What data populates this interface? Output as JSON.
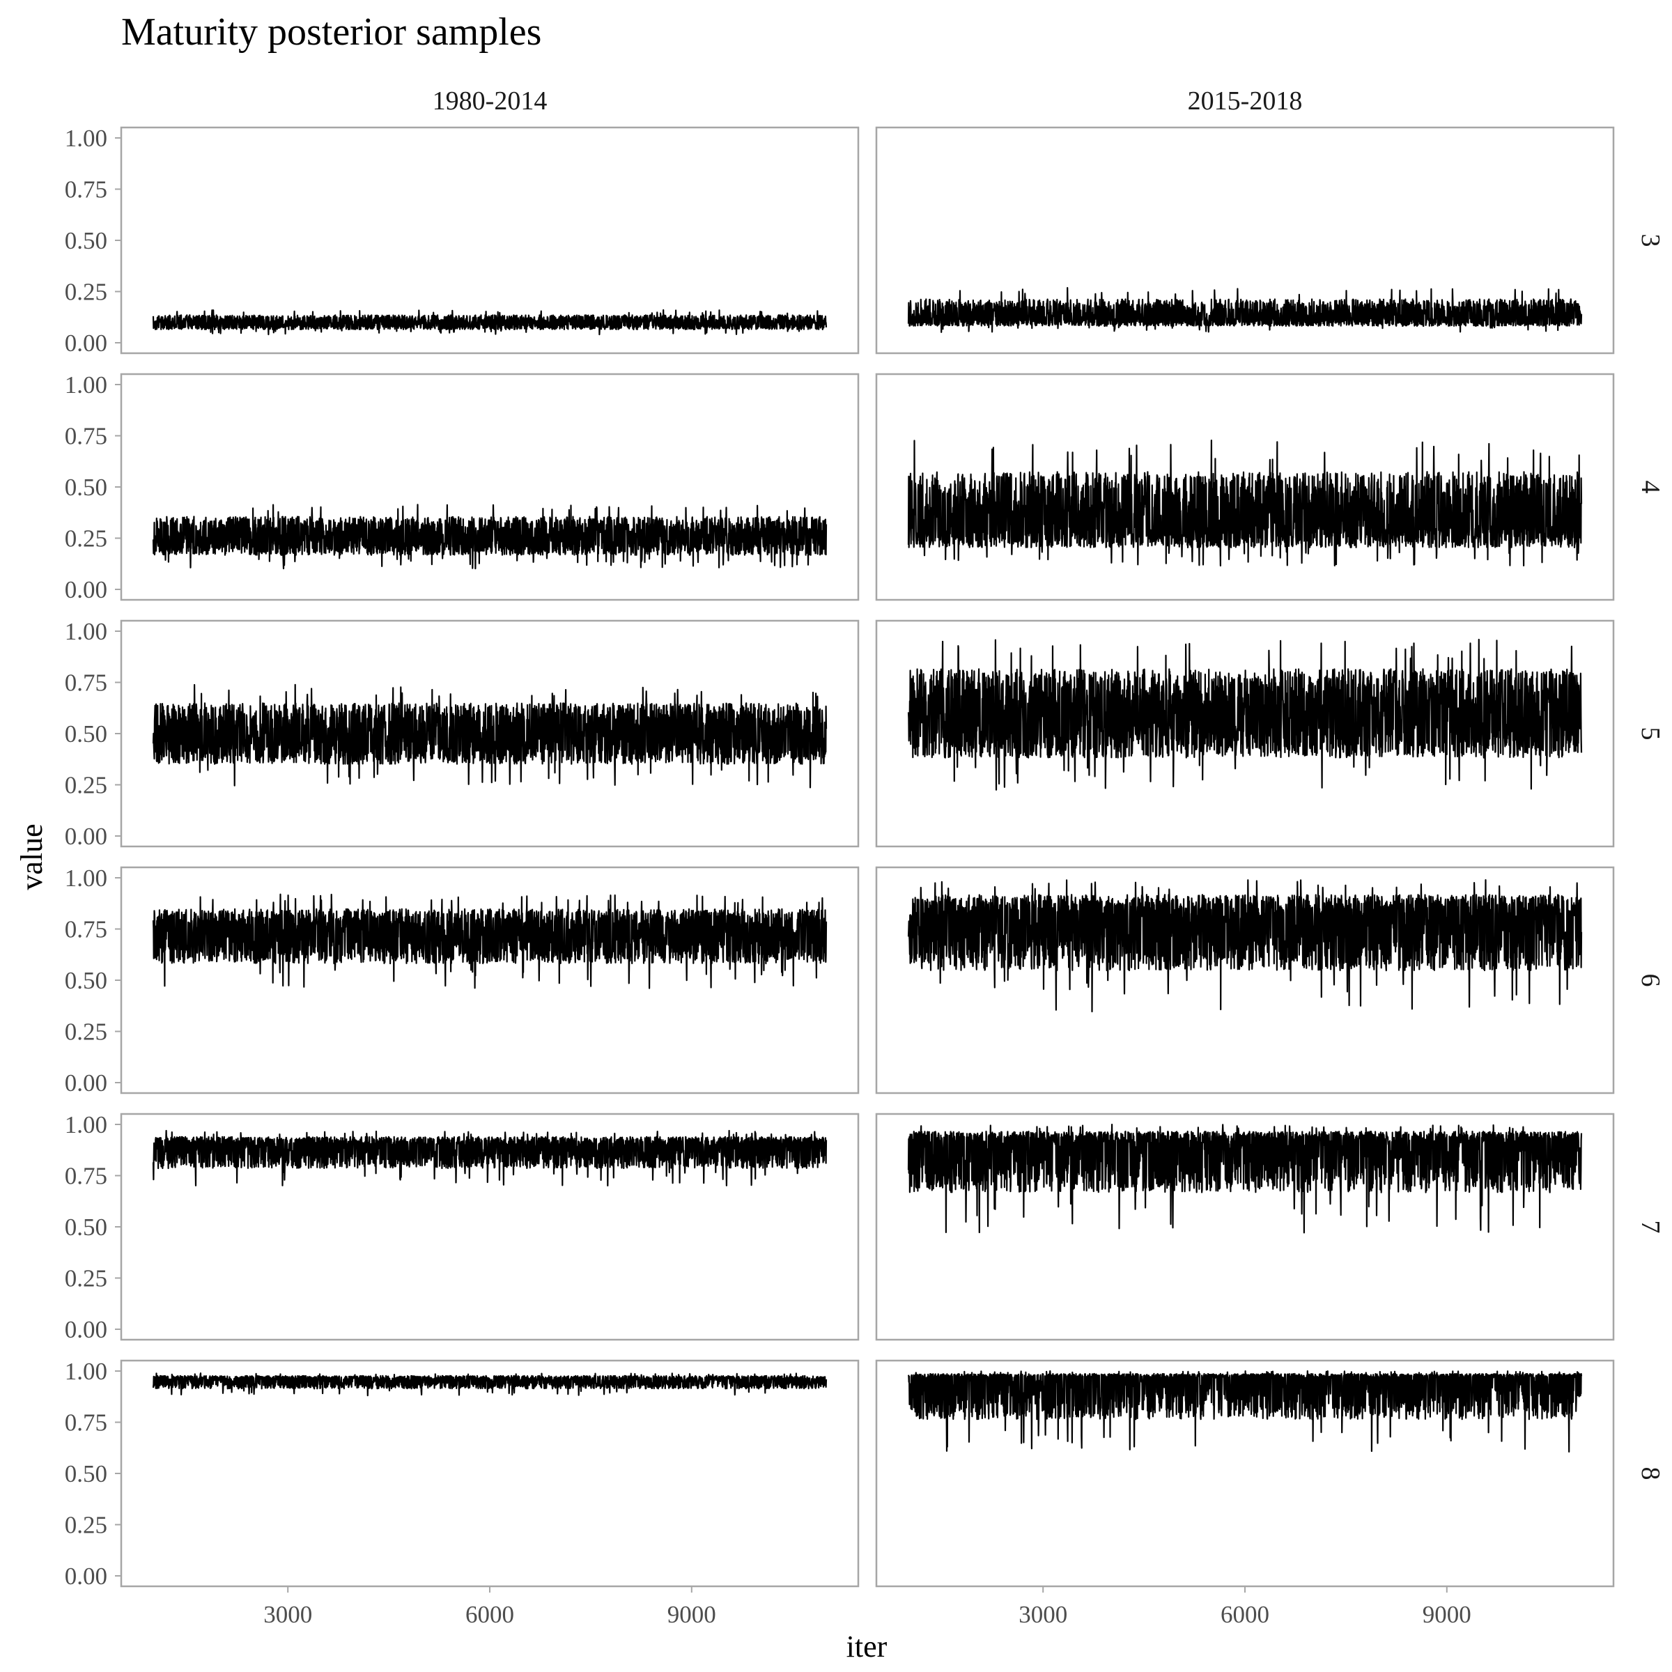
{
  "chart_data": {
    "type": "line",
    "title": "Maturity posterior samples",
    "xlabel": "iter",
    "ylabel": "value",
    "column_facets": [
      "1980-2014",
      "2015-2018"
    ],
    "row_facets": [
      "3",
      "4",
      "5",
      "6",
      "7",
      "8"
    ],
    "xlim": [
      1000,
      11000
    ],
    "ylim": [
      0,
      1
    ],
    "x_ticks": [
      3000,
      6000,
      9000
    ],
    "x_tick_labels": [
      "3000",
      "6000",
      "9000"
    ],
    "y_ticks": [
      0,
      0.25,
      0.5,
      0.75,
      1
    ],
    "y_tick_labels": [
      "0.00",
      "0.25",
      "0.50",
      "0.75",
      "1.00"
    ],
    "grid": false,
    "iter_range": [
      1000,
      11000
    ],
    "panels": [
      {
        "row": "3",
        "column": "1980-2014",
        "mean": 0.095,
        "min": 0.04,
        "max": 0.16
      },
      {
        "row": "3",
        "column": "2015-2018",
        "mean": 0.12,
        "min": 0.05,
        "max": 0.27
      },
      {
        "row": "4",
        "column": "1980-2014",
        "mean": 0.25,
        "min": 0.1,
        "max": 0.42
      },
      {
        "row": "4",
        "column": "2015-2018",
        "mean": 0.32,
        "min": 0.11,
        "max": 0.73
      },
      {
        "row": "5",
        "column": "1980-2014",
        "mean": 0.5,
        "min": 0.23,
        "max": 0.74
      },
      {
        "row": "5",
        "column": "2015-2018",
        "mean": 0.58,
        "min": 0.22,
        "max": 0.96
      },
      {
        "row": "6",
        "column": "1980-2014",
        "mean": 0.73,
        "min": 0.46,
        "max": 0.92
      },
      {
        "row": "6",
        "column": "2015-2018",
        "mean": 0.8,
        "min": 0.34,
        "max": 0.99
      },
      {
        "row": "7",
        "column": "1980-2014",
        "mean": 0.89,
        "min": 0.7,
        "max": 0.97
      },
      {
        "row": "7",
        "column": "2015-2018",
        "mean": 0.91,
        "min": 0.47,
        "max": 1.0
      },
      {
        "row": "8",
        "column": "1980-2014",
        "mean": 0.955,
        "min": 0.88,
        "max": 0.99
      },
      {
        "row": "8",
        "column": "2015-2018",
        "mean": 0.965,
        "min": 0.6,
        "max": 1.0
      }
    ]
  }
}
